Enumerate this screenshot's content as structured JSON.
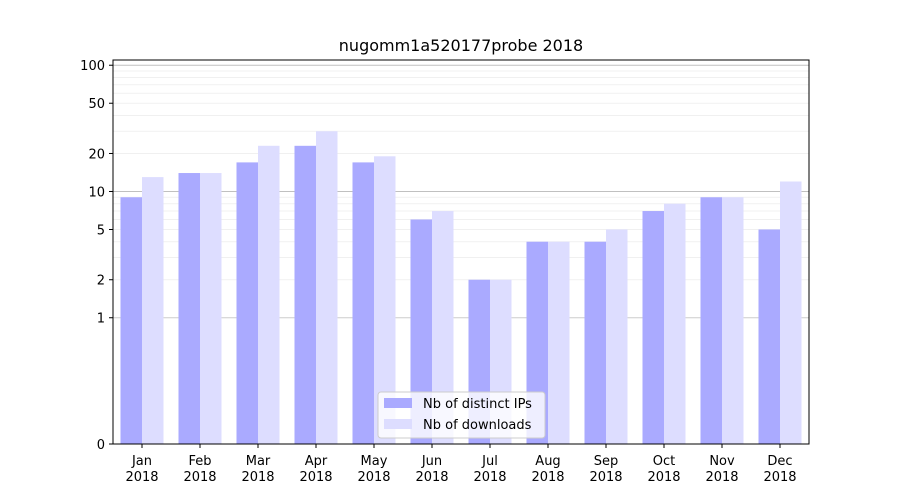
{
  "chart_data": {
    "type": "bar",
    "title": "nugomm1a520177probe 2018",
    "xlabel": "",
    "ylabel": "",
    "yscale": "symlog",
    "ylim": [
      0,
      110
    ],
    "yticks": [
      0,
      1,
      2,
      5,
      10,
      20,
      50,
      100
    ],
    "categories": [
      [
        "Jan",
        "2018"
      ],
      [
        "Feb",
        "2018"
      ],
      [
        "Mar",
        "2018"
      ],
      [
        "Apr",
        "2018"
      ],
      [
        "May",
        "2018"
      ],
      [
        "Jun",
        "2018"
      ],
      [
        "Jul",
        "2018"
      ],
      [
        "Aug",
        "2018"
      ],
      [
        "Sep",
        "2018"
      ],
      [
        "Oct",
        "2018"
      ],
      [
        "Nov",
        "2018"
      ],
      [
        "Dec",
        "2018"
      ]
    ],
    "series": [
      {
        "name": "Nb of distinct IPs",
        "color": "#aaaaff",
        "values": [
          9,
          14,
          17,
          23,
          17,
          6,
          2,
          4,
          4,
          7,
          9,
          5
        ]
      },
      {
        "name": "Nb of downloads",
        "color": "#ddddff",
        "values": [
          13,
          14,
          23,
          30,
          19,
          7,
          2,
          4,
          5,
          8,
          9,
          12
        ]
      }
    ],
    "grid": true,
    "legend_position": "lower-center"
  }
}
